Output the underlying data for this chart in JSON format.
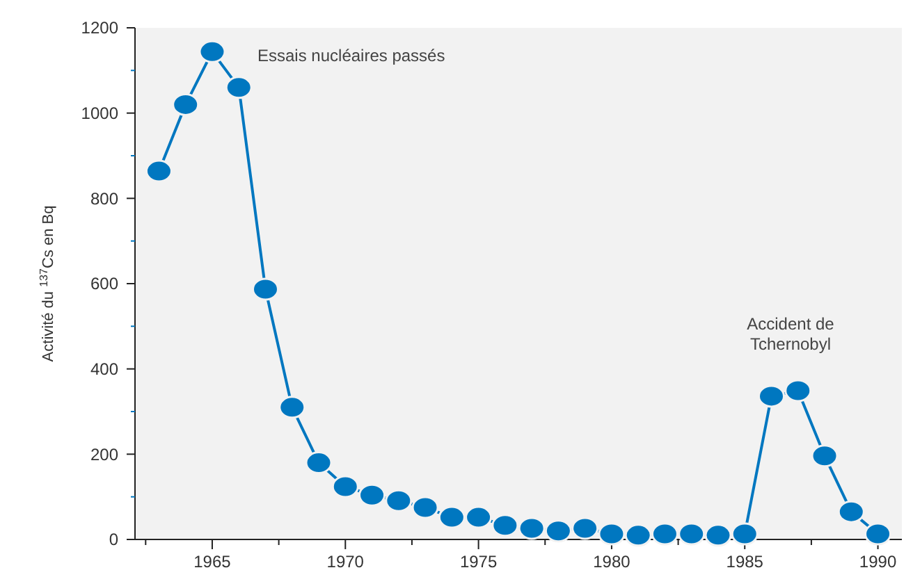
{
  "chart_data": {
    "type": "line",
    "ylabel": "Activité du $^{137}$Cs en Bq",
    "x": [
      1963,
      1964,
      1965,
      1966,
      1967,
      1968,
      1969,
      1970,
      1971,
      1972,
      1973,
      1974,
      1975,
      1976,
      1977,
      1978,
      1979,
      1980,
      1981,
      1982,
      1983,
      1984,
      1985,
      1986,
      1987,
      1988,
      1989,
      1990
    ],
    "series": [
      {
        "color": "#0077c0",
        "values": [
          864,
          1020,
          1144,
          1060,
          587,
          310,
          180,
          124,
          104,
          91,
          75,
          52,
          52,
          33,
          26,
          20,
          26,
          13,
          10,
          13,
          13,
          10,
          13,
          336,
          349,
          196,
          65,
          13
        ]
      }
    ],
    "xlim": [
      1962.1,
      1990.9
    ],
    "xticks": [
      {
        "value": 1962.5,
        "label": null
      },
      1965,
      {
        "value": 1967.5,
        "label": null
      },
      1970,
      {
        "value": 1972.5,
        "label": null
      },
      1975,
      {
        "value": 1977.5,
        "label": null
      },
      1980,
      {
        "value": 1982.5,
        "label": null
      },
      1985,
      {
        "value": 1987.5,
        "label": null
      },
      1990
    ],
    "ylim": [
      0,
      1200
    ],
    "yticks": [
      0,
      {
        "value": 100,
        "label": null
      },
      200,
      {
        "value": 300,
        "label": null
      },
      400,
      {
        "value": 500,
        "label": null
      },
      600,
      {
        "value": 700,
        "label": null
      },
      800,
      {
        "value": 900,
        "label": null
      },
      1000,
      {
        "value": 1100,
        "label": null
      },
      1200
    ],
    "grid": false,
    "marker": "circle",
    "line_style": "solid",
    "annotations": [
      "Essais nucléaires passés",
      "Accident de Tchernobyl"
    ]
  }
}
